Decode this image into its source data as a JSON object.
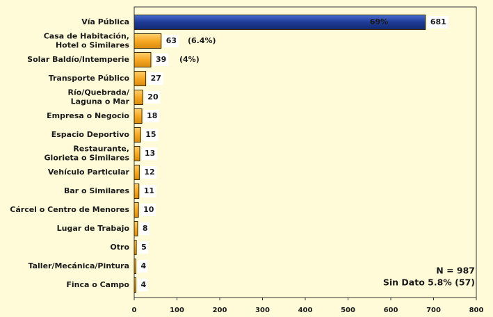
{
  "chart_data": {
    "type": "bar",
    "orientation": "horizontal",
    "categories": [
      "Vía Pública",
      "Casa de Habitación,\nHotel o Similares",
      "Solar Baldío/Intemperie",
      "Transporte Público",
      "Río/Quebrada/\nLaguna o Mar",
      "Empresa o Negocio",
      "Espacio Deportivo",
      "Restaurante,\nGlorieta o Similares",
      "Vehículo Particular",
      "Bar o Similares",
      "Cárcel o Centro de Menores",
      "Lugar de Trabajo",
      "Otro",
      "Taller/Mecánica/Pintura",
      "Finca o Campo"
    ],
    "values": [
      681,
      63,
      39,
      27,
      20,
      18,
      15,
      13,
      12,
      11,
      10,
      8,
      5,
      4,
      4
    ],
    "colors": [
      "#1e3a96",
      "#f7a823",
      "#f7a823",
      "#f7a823",
      "#f7a823",
      "#f7a823",
      "#f7a823",
      "#f7a823",
      "#f7a823",
      "#f7a823",
      "#f7a823",
      "#f7a823",
      "#f7a823",
      "#f7a823",
      "#f7a823"
    ],
    "xlim": [
      0,
      800
    ],
    "xticks": [
      0,
      100,
      200,
      300,
      400,
      500,
      600,
      700,
      800
    ],
    "annotations": [
      "69%",
      "(6.4%)",
      "(4%)",
      "N = 987",
      "Sin Dato 5.8% (57)"
    ]
  }
}
